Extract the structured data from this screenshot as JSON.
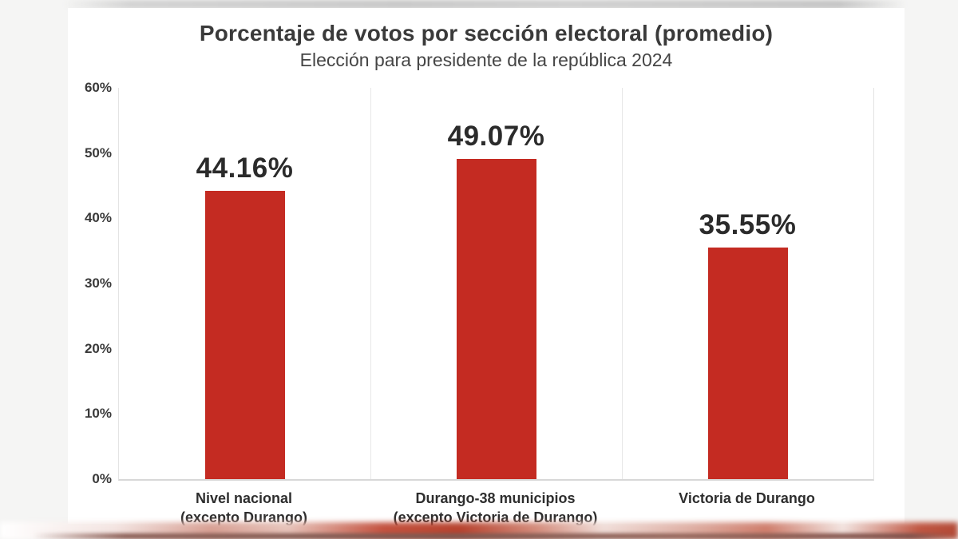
{
  "title": "Porcentaje de votos por sección electoral (promedio)",
  "subtitle": "Elección para presidente de la república 2024",
  "colors": {
    "bar": "#c42b22",
    "separator": "#e7e7e7",
    "axis": "#d8d8d8",
    "title_text": "#3a3a3a",
    "value_text": "#2b2b2b"
  },
  "chart_data": {
    "type": "bar",
    "title": "Porcentaje de votos por sección electoral (promedio)",
    "subtitle": "Elección para presidente de la república 2024",
    "categories": [
      [
        "Nivel nacional",
        "(excepto Durango)"
      ],
      [
        "Durango-38 municipios",
        "(excepto Victoria de Durango)"
      ],
      [
        "Victoria de Durango"
      ]
    ],
    "values": [
      44.16,
      49.07,
      35.55
    ],
    "value_labels": [
      "44.16%",
      "49.07%",
      "35.55%"
    ],
    "ylim": [
      0,
      60
    ],
    "yticks": [
      0,
      10,
      20,
      30,
      40,
      50,
      60
    ],
    "ytick_labels": [
      "0%",
      "10%",
      "20%",
      "30%",
      "40%",
      "50%",
      "60%"
    ],
    "xlabel": "",
    "ylabel": "",
    "grid": "vertical-column-separators-only",
    "legend": "none",
    "bar_color": "#c42b22"
  }
}
